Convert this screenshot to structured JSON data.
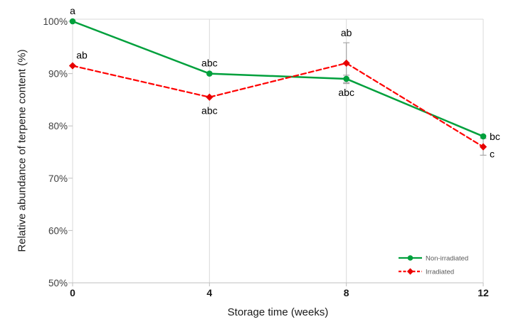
{
  "chart_data": {
    "type": "line",
    "title": "",
    "xlabel": "Storage time (weeks)",
    "ylabel": "Relative abundance of terpene content (%)",
    "x": [
      0,
      4,
      8,
      12
    ],
    "xlim": [
      0,
      12
    ],
    "ylim": [
      50,
      100.5
    ],
    "grid": "vertical-only",
    "legend_position": "inside-bottom-right",
    "xticks": [
      {
        "value": 0,
        "label": "0"
      },
      {
        "value": 4,
        "label": "4"
      },
      {
        "value": 8,
        "label": "8"
      },
      {
        "value": 12,
        "label": "12"
      }
    ],
    "yticks": [
      {
        "value": 100,
        "label": "100%"
      },
      {
        "value": 90,
        "label": "90%"
      },
      {
        "value": 80,
        "label": "80%"
      },
      {
        "value": 70,
        "label": "70%"
      },
      {
        "value": 60,
        "label": "60%"
      },
      {
        "value": 50,
        "label": "50%"
      }
    ],
    "series": [
      {
        "name": "Non-irradiated",
        "color": "#00A03C",
        "marker_color": "#00A03C",
        "marker": "circle",
        "line_style": "solid",
        "values": [
          100,
          90,
          89,
          78
        ],
        "error_bars": [
          null,
          null,
          0.7,
          null
        ],
        "point_labels": [
          {
            "text": "a",
            "position": "above"
          },
          {
            "text": "abc",
            "position": "above"
          },
          {
            "text": "abc",
            "position": "below"
          },
          {
            "text": "bc",
            "position": "right"
          }
        ]
      },
      {
        "name": "Irradiated",
        "color": "#FF0000",
        "marker_color": "#E60000",
        "marker": "diamond",
        "line_style": "dashed",
        "values": [
          91.5,
          85.5,
          92,
          76
        ],
        "error_bars": [
          null,
          null,
          3.9,
          1.6
        ],
        "point_labels": [
          {
            "text": "ab",
            "position": "above-right"
          },
          {
            "text": "abc",
            "position": "below"
          },
          {
            "text": "ab",
            "position": "above"
          },
          {
            "text": "c",
            "position": "below-right"
          }
        ]
      }
    ],
    "colors": {
      "gridline": "#D9D9D9",
      "axis_line": "#BFBFBF",
      "error_bar": "#A6A6A6",
      "tick_label": "#404040",
      "x_tick_label": "#1A1A1A",
      "annotation": "#000000",
      "legend_text": "#595959",
      "background": "#FFFFFF"
    }
  }
}
